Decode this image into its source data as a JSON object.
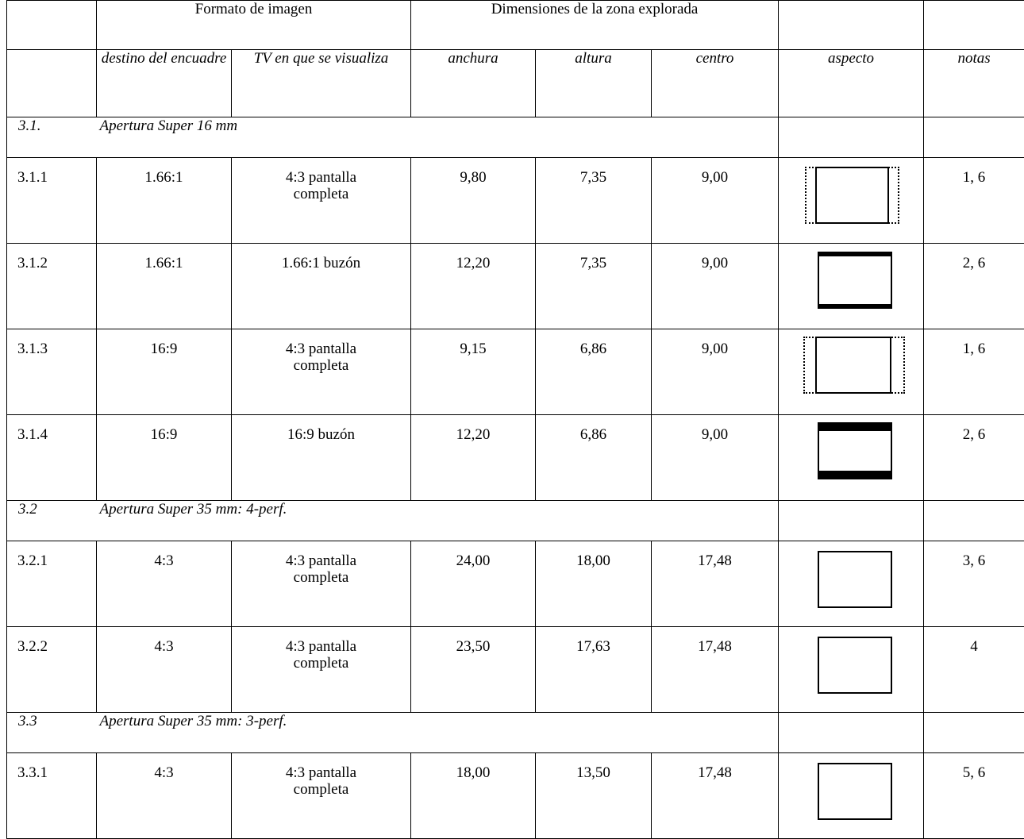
{
  "header": {
    "group1": "Formato de imagen",
    "group2": "Dimensiones de la zona explorada",
    "col_destino": "destino del encuadre",
    "col_tv": "TV en que se visualiza",
    "col_anchura": "anchura",
    "col_altura": "altura",
    "col_centro": "centro",
    "col_aspecto": "aspecto",
    "col_notas": "notas"
  },
  "sections": [
    {
      "num": "3.1.",
      "title": "Apertura Super 16 mm",
      "rows": [
        {
          "id": "3.1.1",
          "destino": "1.66:1",
          "tv": "4:3 pantalla completa",
          "anchura": "9,80",
          "altura": "7,35",
          "centro": "9,00",
          "aspect_icon": "pillarbox-166-icon",
          "notas": "1, 6"
        },
        {
          "id": "3.1.2",
          "destino": "1.66:1",
          "tv": "1.66:1 buzón",
          "anchura": "12,20",
          "altura": "7,35",
          "centro": "9,00",
          "aspect_icon": "letterbox-166-icon",
          "notas": "2, 6"
        },
        {
          "id": "3.1.3",
          "destino": "16:9",
          "tv": "4:3 pantalla completa",
          "anchura": "9,15",
          "altura": "6,86",
          "centro": "9,00",
          "aspect_icon": "pillarbox-169-icon",
          "notas": "1, 6"
        },
        {
          "id": "3.1.4",
          "destino": "16:9",
          "tv": "16:9 buzón",
          "anchura": "12,20",
          "altura": "6,86",
          "centro": "9,00",
          "aspect_icon": "letterbox-169-icon",
          "notas": "2, 6"
        }
      ]
    },
    {
      "num": "3.2",
      "title": "Apertura Super 35 mm: 4-perf.",
      "rows": [
        {
          "id": "3.2.1",
          "destino": "4:3",
          "tv": "4:3 pantalla completa",
          "anchura": "24,00",
          "altura": "18,00",
          "centro": "17,48",
          "aspect_icon": "fullframe-43-icon",
          "notas": "3, 6"
        },
        {
          "id": "3.2.2",
          "destino": "4:3",
          "tv": "4:3 pantalla completa",
          "anchura": "23,50",
          "altura": "17,63",
          "centro": "17,48",
          "aspect_icon": "fullframe-43-icon",
          "notas": "4"
        }
      ]
    },
    {
      "num": "3.3",
      "title": "Apertura Super 35 mm: 3-perf.",
      "rows": [
        {
          "id": "3.3.1",
          "destino": "4:3",
          "tv": "4:3 pantalla completa",
          "anchura": "18,00",
          "altura": "13,50",
          "centro": "17,48",
          "aspect_icon": "fullframe-43-icon",
          "notas": "5, 6"
        }
      ]
    }
  ]
}
